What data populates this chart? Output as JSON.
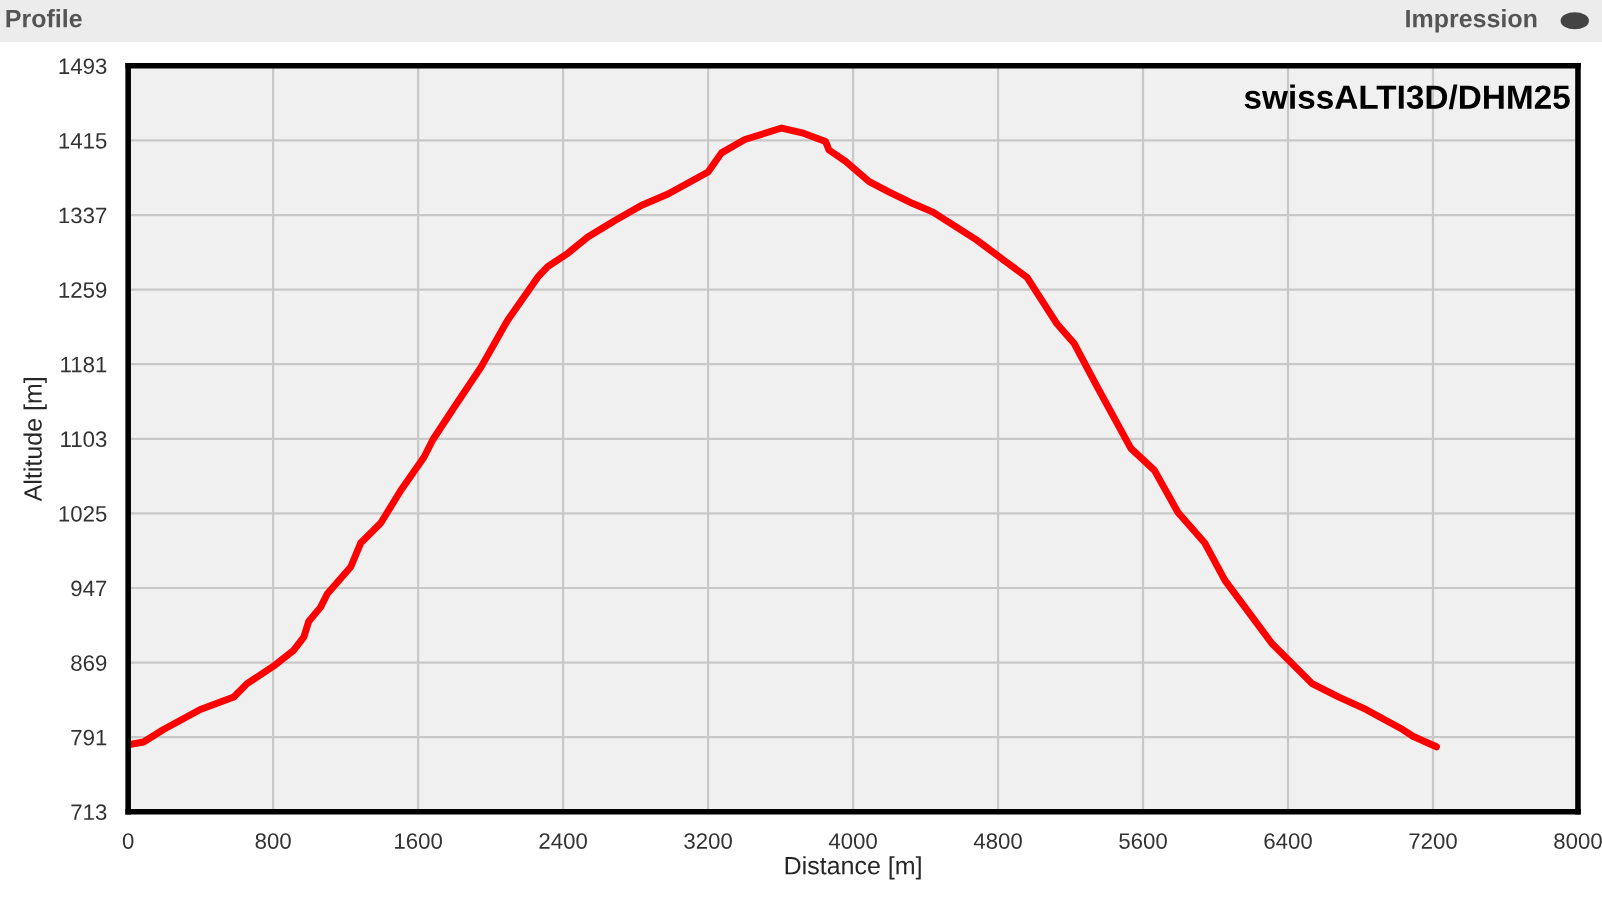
{
  "chart_data": {
    "type": "line",
    "title": "Profile",
    "xlabel": "Distance [m]",
    "ylabel": "Altitude [m]",
    "annotations": [
      "Impression",
      "swissALTI3D/DHM25"
    ],
    "xlim": [
      0,
      8000
    ],
    "xticks": [
      0,
      800,
      1600,
      2400,
      3200,
      4000,
      4800,
      5600,
      6400,
      7200,
      8000
    ],
    "ylim": [
      713,
      1493
    ],
    "yticks": [
      713,
      791,
      869,
      947,
      1025,
      1103,
      1181,
      1259,
      1337,
      1415,
      1493
    ],
    "grid": true,
    "marker": "none",
    "line_style": "solid",
    "series": [
      {
        "color": "#ff0000",
        "x": [
          0,
          85,
          195,
          398,
          583,
          656,
          800,
          914,
          970,
          996,
          1062,
          1099,
          1228,
          1283,
          1394,
          1504,
          1633,
          1681,
          1799,
          1947,
          2094,
          2260,
          2315,
          2426,
          2536,
          2684,
          2831,
          2979,
          3200,
          3274,
          3403,
          3606,
          3719,
          3848,
          3867,
          3959,
          4089,
          4200,
          4330,
          4441,
          4681,
          4830,
          4959,
          5126,
          5219,
          5348,
          5533,
          5663,
          5793,
          5941,
          6052,
          6311,
          6533,
          6681,
          6830,
          7033,
          7089,
          7219
        ],
        "values": [
          783,
          786,
          799,
          820,
          833,
          847,
          865,
          882,
          896,
          912,
          927,
          941,
          969,
          994,
          1015,
          1049,
          1084,
          1102,
          1136,
          1178,
          1227,
          1272,
          1283,
          1297,
          1314,
          1331,
          1347,
          1359,
          1382,
          1402,
          1416,
          1428,
          1423,
          1414,
          1405,
          1393,
          1372,
          1361,
          1349,
          1340,
          1311,
          1290,
          1272,
          1223,
          1203,
          1157,
          1093,
          1070,
          1026,
          994,
          955,
          889,
          847,
          833,
          820,
          799,
          792,
          781
        ]
      }
    ]
  }
}
